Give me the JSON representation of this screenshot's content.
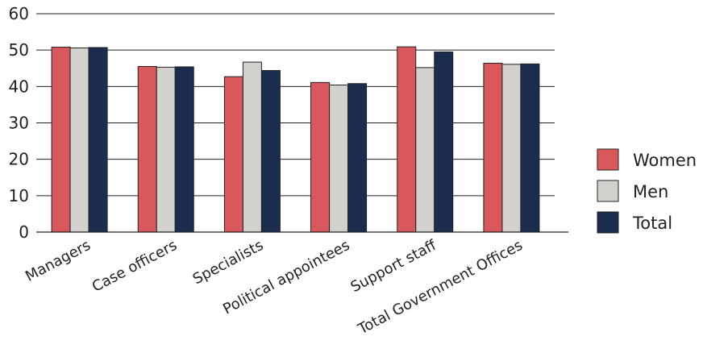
{
  "chart_data": {
    "type": "bar",
    "categories": [
      "Managers",
      "Case officers",
      "Specialists",
      "Political appointees",
      "Support staff",
      "Total Government Offices"
    ],
    "series": [
      {
        "name": "Women",
        "color": "#d9585b",
        "values": [
          50.8,
          45.5,
          42.7,
          41.1,
          50.9,
          46.4
        ]
      },
      {
        "name": "Men",
        "color": "#d3d1ce",
        "values": [
          50.6,
          45.3,
          46.7,
          40.4,
          45.2,
          46.1
        ]
      },
      {
        "name": "Total",
        "color": "#1b2d4f",
        "values": [
          50.7,
          45.4,
          44.4,
          40.8,
          49.5,
          46.2
        ]
      }
    ],
    "y_ticks": [
      0,
      10,
      20,
      30,
      40,
      50,
      60
    ],
    "ylim": [
      0,
      60
    ],
    "grid": "horizontal",
    "legend_position": "right"
  }
}
